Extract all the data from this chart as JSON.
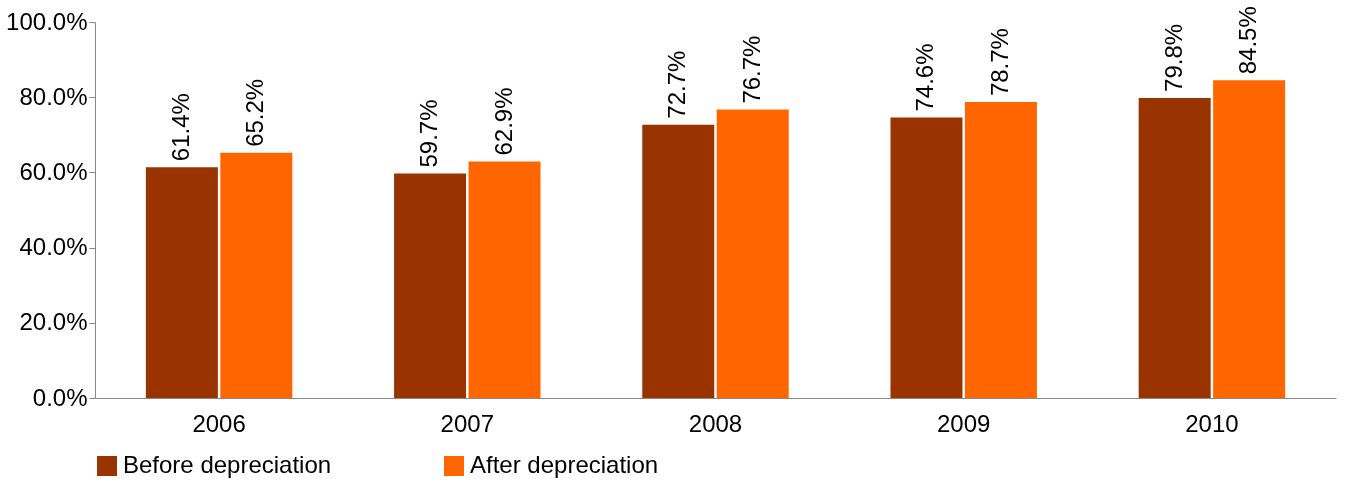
{
  "chart_data": {
    "type": "bar",
    "categories": [
      "2006",
      "2007",
      "2008",
      "2009",
      "2010"
    ],
    "series": [
      {
        "name": "Before depreciation",
        "color": "#993300",
        "values": [
          61.4,
          59.7,
          72.7,
          74.6,
          79.8
        ],
        "value_labels": [
          "61.4%",
          "59.7%",
          "72.7%",
          "74.6%",
          "79.8%"
        ]
      },
      {
        "name": "After depreciation",
        "color": "#ff6600",
        "values": [
          65.2,
          62.9,
          76.7,
          78.7,
          84.5
        ],
        "value_labels": [
          "65.2%",
          "62.9%",
          "76.7%",
          "78.7%",
          "84.5%"
        ]
      }
    ],
    "ylim": [
      0,
      100
    ],
    "yticks": [
      {
        "value": 0,
        "label": "0.0%"
      },
      {
        "value": 20,
        "label": "20.0%"
      },
      {
        "value": 40,
        "label": "40.0%"
      },
      {
        "value": 60,
        "label": "60.0%"
      },
      {
        "value": 80,
        "label": "80.0%"
      },
      {
        "value": 100,
        "label": "100.0%"
      }
    ],
    "grid": false,
    "legend": "bottom"
  }
}
